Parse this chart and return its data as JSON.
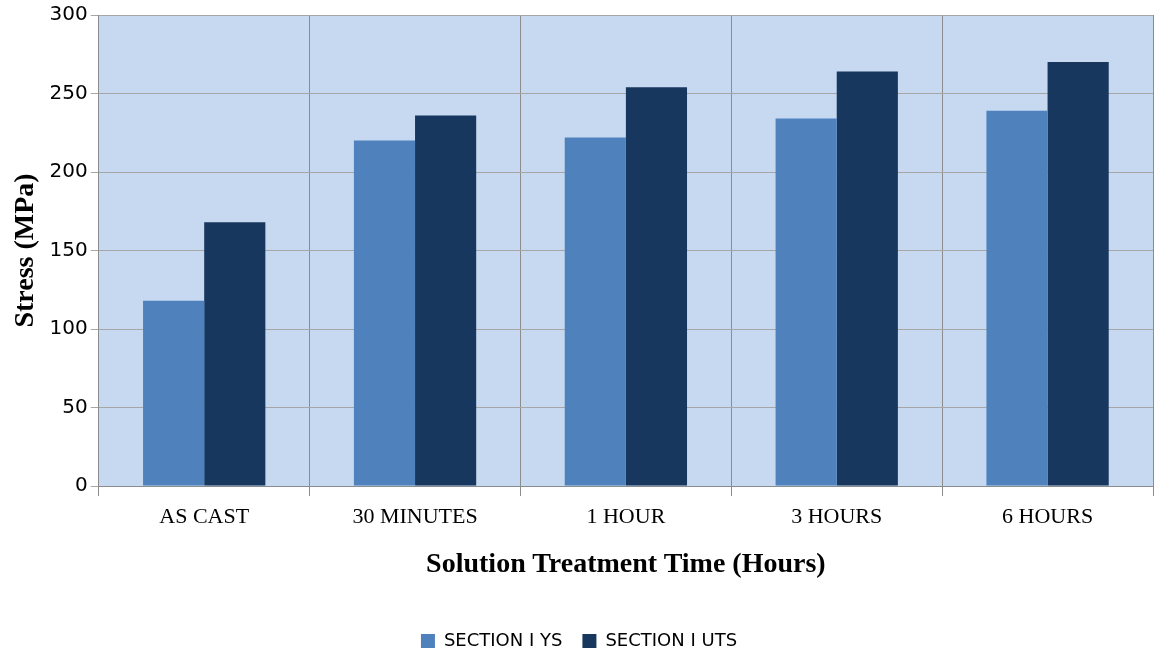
{
  "chart_data": {
    "type": "bar",
    "xlabel": "Solution Treatment Time (Hours)",
    "ylabel": "Stress (MPa)",
    "categories": [
      "AS CAST",
      "30 MINUTES",
      "1 HOUR",
      "3 HOURS",
      "6 HOURS"
    ],
    "series": [
      {
        "name": "SECTION I YS",
        "color": "#4f81bd",
        "values": [
          118,
          220,
          222,
          234,
          239
        ]
      },
      {
        "name": "SECTION I UTS",
        "color": "#17375e",
        "values": [
          168,
          236,
          254,
          264,
          270
        ]
      }
    ],
    "ylim": [
      0,
      300
    ],
    "yticks": [
      0,
      50,
      100,
      150,
      200,
      250,
      300
    ],
    "grid": true,
    "legend": "bottom"
  }
}
